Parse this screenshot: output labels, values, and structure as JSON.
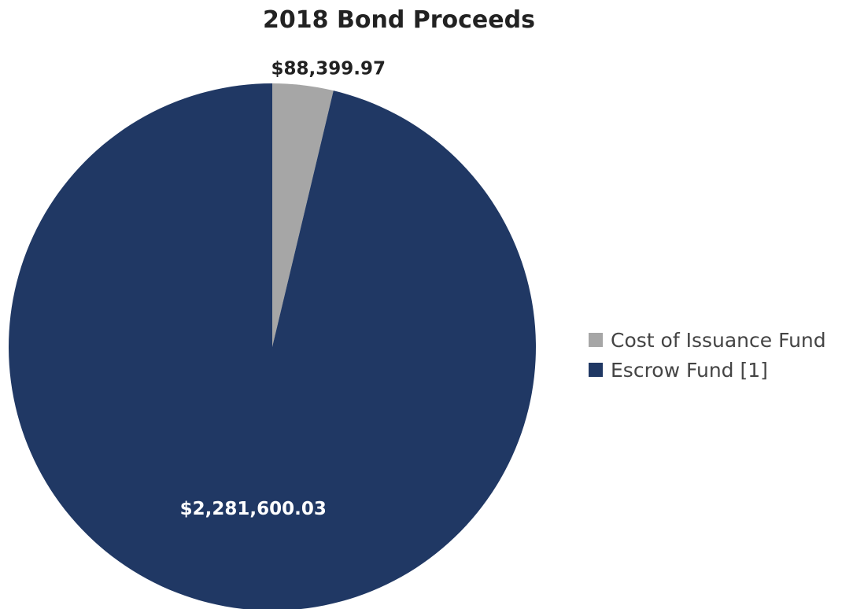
{
  "chart_data": {
    "type": "pie",
    "title": "2018 Bond Proceeds",
    "slices": [
      {
        "name": "Cost of Issuance Fund",
        "value": 88399.97,
        "label": "$88,399.97",
        "color": "#a6a6a6"
      },
      {
        "name": "Escrow Fund [1]",
        "value": 2281600.03,
        "label": "$2,281,600.03",
        "color": "#203864"
      }
    ],
    "start_angle": "12 o'clock",
    "direction": "clockwise",
    "legend_position": "right"
  }
}
